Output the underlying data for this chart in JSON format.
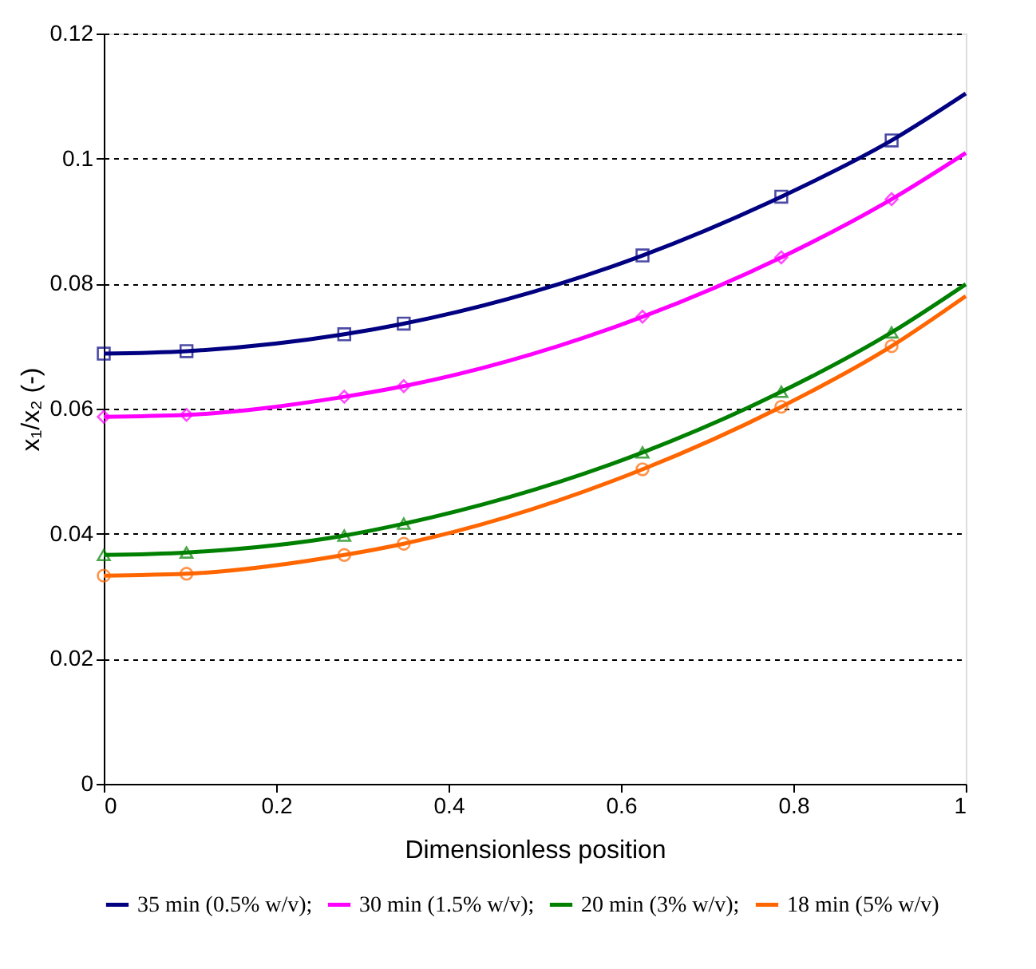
{
  "chart_data": {
    "type": "line",
    "xlabel": "Dimensionless position",
    "ylabel": "x₁/x₂ (-)",
    "xlim": [
      0,
      1
    ],
    "xticks": [
      0,
      0.2,
      0.4,
      0.6,
      0.8,
      1
    ],
    "ylim": [
      0,
      0.12
    ],
    "yticks": [
      0,
      0.02,
      0.04,
      0.06,
      0.08,
      0.1,
      0.12
    ],
    "grid": "y",
    "legend": "bottom",
    "line_style": "solid",
    "series": [
      {
        "name": "35 min (0.5% w/v);",
        "color": "#000080",
        "marker": "none",
        "x": [
          0,
          0.096,
          0.279,
          0.348,
          0.625,
          0.786,
          0.914,
          1
        ],
        "values": [
          0.0688,
          0.0692,
          0.0719,
          0.0736,
          0.0845,
          0.0939,
          0.1029,
          0.1104
        ]
      },
      {
        "name": "30 min (1.5% w/v);",
        "color": "#ff00ff",
        "marker": "none",
        "x": [
          0,
          0.096,
          0.279,
          0.348,
          0.625,
          0.786,
          0.914,
          1
        ],
        "values": [
          0.0587,
          0.059,
          0.0619,
          0.0636,
          0.0747,
          0.0842,
          0.0935,
          0.1009
        ]
      },
      {
        "name": "20 min (3% w/v);",
        "color": "#008000",
        "marker": "none",
        "x": [
          0,
          0.096,
          0.279,
          0.348,
          0.625,
          0.786,
          0.914,
          1
        ],
        "values": [
          0.0366,
          0.037,
          0.0397,
          0.0416,
          0.053,
          0.0627,
          0.0722,
          0.0799
        ]
      },
      {
        "name": "18 min (5% w/v)",
        "color": "#ff6600",
        "marker": "none",
        "x": [
          0,
          0.096,
          0.279,
          0.348,
          0.625,
          0.786,
          0.914,
          1
        ],
        "values": [
          0.0333,
          0.0336,
          0.0366,
          0.0384,
          0.0503,
          0.0603,
          0.07,
          0.078
        ]
      },
      {
        "type": "scatter",
        "color": "#000080",
        "marker": "square",
        "x": [
          0,
          0.096,
          0.279,
          0.348,
          0.625,
          0.786,
          0.914
        ],
        "values": [
          0.0688,
          0.0692,
          0.0719,
          0.0736,
          0.0845,
          0.0939,
          0.1029
        ]
      },
      {
        "type": "scatter",
        "color": "#ff00ff",
        "marker": "diamond",
        "x": [
          0,
          0.096,
          0.279,
          0.348,
          0.625,
          0.786,
          0.914
        ],
        "values": [
          0.0587,
          0.059,
          0.0619,
          0.0636,
          0.0747,
          0.0842,
          0.0935
        ]
      },
      {
        "type": "scatter",
        "color": "#008000",
        "marker": "triangle",
        "x": [
          0,
          0.096,
          0.279,
          0.348,
          0.625,
          0.786,
          0.914
        ],
        "values": [
          0.0366,
          0.037,
          0.0397,
          0.0416,
          0.053,
          0.0627,
          0.0722
        ]
      },
      {
        "type": "scatter",
        "color": "#ff6600",
        "marker": "circle",
        "x": [
          0,
          0.096,
          0.279,
          0.348,
          0.625,
          0.786,
          0.914
        ],
        "values": [
          0.0333,
          0.0336,
          0.0366,
          0.0384,
          0.0503,
          0.0603,
          0.07
        ]
      }
    ]
  }
}
